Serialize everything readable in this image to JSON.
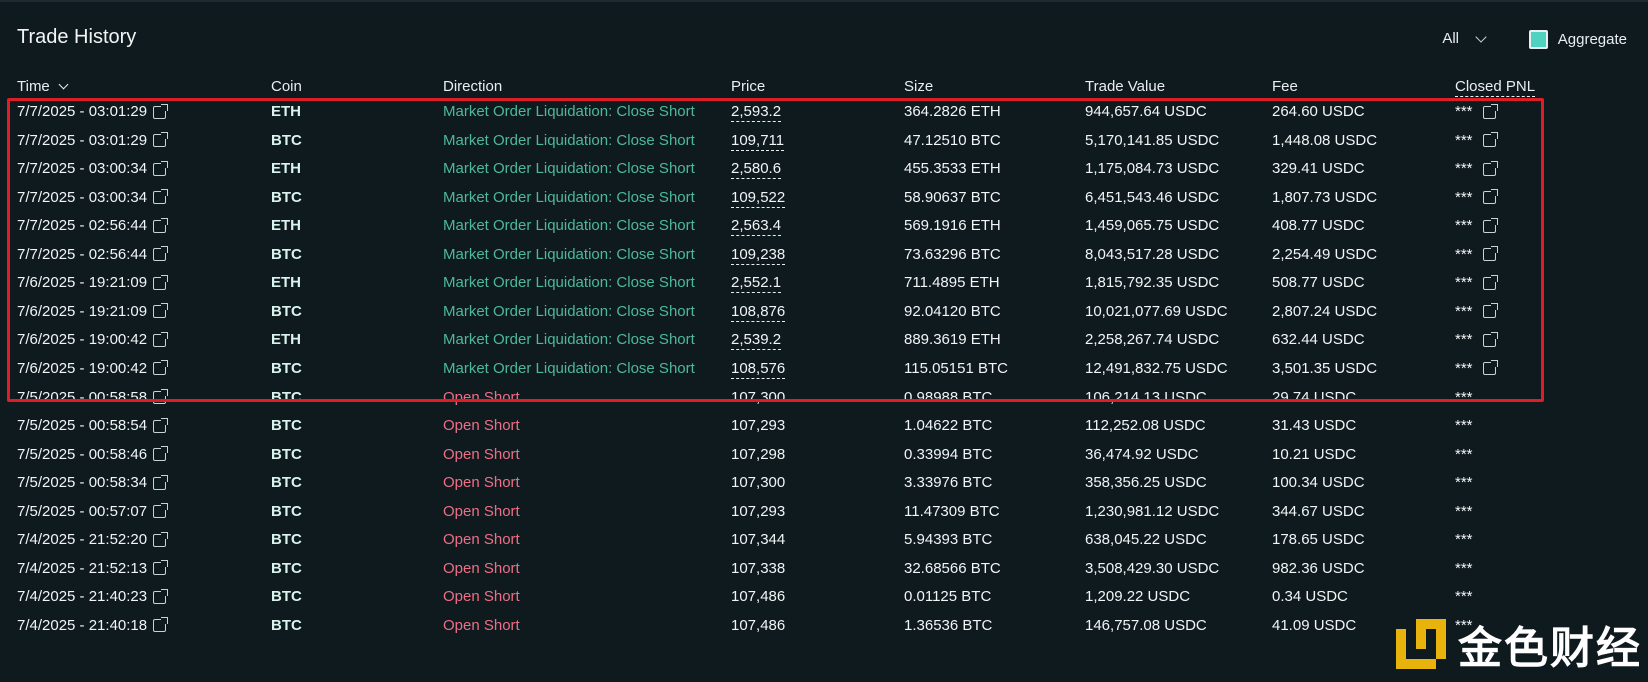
{
  "header": {
    "title": "Trade History"
  },
  "filter": {
    "selected": "All"
  },
  "aggregate": {
    "label": "Aggregate",
    "checked": true
  },
  "columns": {
    "time": "Time",
    "coin": "Coin",
    "direction": "Direction",
    "price": "Price",
    "size": "Size",
    "trade_value": "Trade Value",
    "fee": "Fee",
    "closed_pnl": "Closed PNL"
  },
  "colors": {
    "accent": "#50d2c1",
    "long": "#4db99a",
    "short": "#ed6f86",
    "highlight": "#dc1f26"
  },
  "rows": [
    {
      "time": "7/7/2025 - 03:01:29",
      "coin": "ETH",
      "direction": "Market Order Liquidation: Close Short",
      "price": "2,593.2",
      "size": "364.2826 ETH",
      "value": "944,657.64 USDC",
      "fee": "264.60 USDC",
      "pnl": "***",
      "liq": true
    },
    {
      "time": "7/7/2025 - 03:01:29",
      "coin": "BTC",
      "direction": "Market Order Liquidation: Close Short",
      "price": "109,711",
      "size": "47.12510 BTC",
      "value": "5,170,141.85 USDC",
      "fee": "1,448.08 USDC",
      "pnl": "***",
      "liq": true
    },
    {
      "time": "7/7/2025 - 03:00:34",
      "coin": "ETH",
      "direction": "Market Order Liquidation: Close Short",
      "price": "2,580.6",
      "size": "455.3533 ETH",
      "value": "1,175,084.73 USDC",
      "fee": "329.41 USDC",
      "pnl": "***",
      "liq": true
    },
    {
      "time": "7/7/2025 - 03:00:34",
      "coin": "BTC",
      "direction": "Market Order Liquidation: Close Short",
      "price": "109,522",
      "size": "58.90637 BTC",
      "value": "6,451,543.46 USDC",
      "fee": "1,807.73 USDC",
      "pnl": "***",
      "liq": true
    },
    {
      "time": "7/7/2025 - 02:56:44",
      "coin": "ETH",
      "direction": "Market Order Liquidation: Close Short",
      "price": "2,563.4",
      "size": "569.1916 ETH",
      "value": "1,459,065.75 USDC",
      "fee": "408.77 USDC",
      "pnl": "***",
      "liq": true
    },
    {
      "time": "7/7/2025 - 02:56:44",
      "coin": "BTC",
      "direction": "Market Order Liquidation: Close Short",
      "price": "109,238",
      "size": "73.63296 BTC",
      "value": "8,043,517.28 USDC",
      "fee": "2,254.49 USDC",
      "pnl": "***",
      "liq": true
    },
    {
      "time": "7/6/2025 - 19:21:09",
      "coin": "ETH",
      "direction": "Market Order Liquidation: Close Short",
      "price": "2,552.1",
      "size": "711.4895 ETH",
      "value": "1,815,792.35 USDC",
      "fee": "508.77 USDC",
      "pnl": "***",
      "liq": true
    },
    {
      "time": "7/6/2025 - 19:21:09",
      "coin": "BTC",
      "direction": "Market Order Liquidation: Close Short",
      "price": "108,876",
      "size": "92.04120 BTC",
      "value": "10,021,077.69 USDC",
      "fee": "2,807.24 USDC",
      "pnl": "***",
      "liq": true
    },
    {
      "time": "7/6/2025 - 19:00:42",
      "coin": "ETH",
      "direction": "Market Order Liquidation: Close Short",
      "price": "2,539.2",
      "size": "889.3619 ETH",
      "value": "2,258,267.74 USDC",
      "fee": "632.44 USDC",
      "pnl": "***",
      "liq": true
    },
    {
      "time": "7/6/2025 - 19:00:42",
      "coin": "BTC",
      "direction": "Market Order Liquidation: Close Short",
      "price": "108,576",
      "size": "115.05151 BTC",
      "value": "12,491,832.75 USDC",
      "fee": "3,501.35 USDC",
      "pnl": "***",
      "liq": true
    },
    {
      "time": "7/5/2025 - 00:58:58",
      "coin": "BTC",
      "direction": "Open Short",
      "price": "107,300",
      "size": "0.98988 BTC",
      "value": "106,214.13 USDC",
      "fee": "29.74 USDC",
      "pnl": "***",
      "liq": false
    },
    {
      "time": "7/5/2025 - 00:58:54",
      "coin": "BTC",
      "direction": "Open Short",
      "price": "107,293",
      "size": "1.04622 BTC",
      "value": "112,252.08 USDC",
      "fee": "31.43 USDC",
      "pnl": "***",
      "liq": false
    },
    {
      "time": "7/5/2025 - 00:58:46",
      "coin": "BTC",
      "direction": "Open Short",
      "price": "107,298",
      "size": "0.33994 BTC",
      "value": "36,474.92 USDC",
      "fee": "10.21 USDC",
      "pnl": "***",
      "liq": false
    },
    {
      "time": "7/5/2025 - 00:58:34",
      "coin": "BTC",
      "direction": "Open Short",
      "price": "107,300",
      "size": "3.33976 BTC",
      "value": "358,356.25 USDC",
      "fee": "100.34 USDC",
      "pnl": "***",
      "liq": false
    },
    {
      "time": "7/5/2025 - 00:57:07",
      "coin": "BTC",
      "direction": "Open Short",
      "price": "107,293",
      "size": "11.47309 BTC",
      "value": "1,230,981.12 USDC",
      "fee": "344.67 USDC",
      "pnl": "***",
      "liq": false
    },
    {
      "time": "7/4/2025 - 21:52:20",
      "coin": "BTC",
      "direction": "Open Short",
      "price": "107,344",
      "size": "5.94393 BTC",
      "value": "638,045.22 USDC",
      "fee": "178.65 USDC",
      "pnl": "***",
      "liq": false
    },
    {
      "time": "7/4/2025 - 21:52:13",
      "coin": "BTC",
      "direction": "Open Short",
      "price": "107,338",
      "size": "32.68566 BTC",
      "value": "3,508,429.30 USDC",
      "fee": "982.36 USDC",
      "pnl": "***",
      "liq": false
    },
    {
      "time": "7/4/2025 - 21:40:23",
      "coin": "BTC",
      "direction": "Open Short",
      "price": "107,486",
      "size": "0.01125 BTC",
      "value": "1,209.22 USDC",
      "fee": "0.34 USDC",
      "pnl": "***",
      "liq": false
    },
    {
      "time": "7/4/2025 - 21:40:18",
      "coin": "BTC",
      "direction": "Open Short",
      "price": "107,486",
      "size": "1.36536 BTC",
      "value": "146,757.08 USDC",
      "fee": "41.09 USDC",
      "pnl": "***",
      "liq": false
    }
  ],
  "watermark": {
    "text": "金色财经",
    "icon": "golden-logo-icon"
  }
}
